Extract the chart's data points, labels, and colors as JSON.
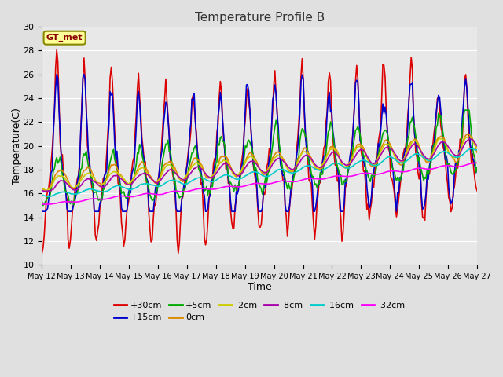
{
  "title": "Temperature Profile B",
  "xlabel": "Time",
  "ylabel": "Temperature(C)",
  "ylim": [
    10,
    30
  ],
  "days": 16,
  "background_color": "#e0e0e0",
  "plot_bg_color": "#e8e8e8",
  "grid_color": "#ffffff",
  "series_order": [
    "+30cm",
    "+15cm",
    "+5cm",
    "0cm",
    "-2cm",
    "-8cm",
    "-16cm",
    "-32cm"
  ],
  "series": {
    "+30cm": {
      "color": "#dd0000",
      "lw": 1.2
    },
    "+15cm": {
      "color": "#0000cc",
      "lw": 1.2
    },
    "+5cm": {
      "color": "#00aa00",
      "lw": 1.2
    },
    "0cm": {
      "color": "#dd8800",
      "lw": 1.2
    },
    "-2cm": {
      "color": "#cccc00",
      "lw": 1.2
    },
    "-8cm": {
      "color": "#aa00aa",
      "lw": 1.2
    },
    "-16cm": {
      "color": "#00cccc",
      "lw": 1.2
    },
    "-32cm": {
      "color": "#ff00ff",
      "lw": 1.2
    }
  },
  "xtick_labels": [
    "May 12",
    "May 13",
    "May 14",
    "May 15",
    "May 16",
    "May 17",
    "May 18",
    "May 19",
    "May 20",
    "May 21",
    "May 22",
    "May 23",
    "May 24",
    "May 25",
    "May 26",
    "May 27"
  ],
  "legend_label": "GT_met",
  "legend_bg": "#ffff99",
  "legend_border": "#888800"
}
